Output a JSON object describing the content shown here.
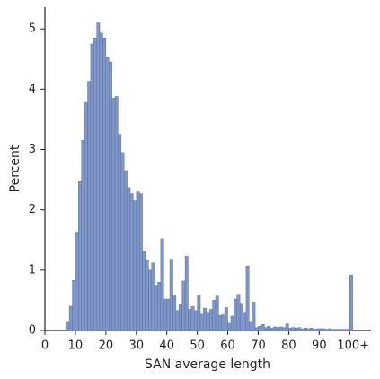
{
  "chart_data": {
    "type": "histogram",
    "xlabel": "SAN average length",
    "ylabel": "Percent",
    "bins": [
      7,
      8,
      9,
      10,
      11,
      12,
      13,
      14,
      15,
      16,
      17,
      18,
      19,
      20,
      21,
      22,
      23,
      24,
      25,
      26,
      27,
      28,
      29,
      30,
      31,
      32,
      33,
      34,
      35,
      36,
      37,
      38,
      39,
      40,
      41,
      42,
      43,
      44,
      45,
      46,
      47,
      48,
      49,
      50,
      51,
      52,
      53,
      54,
      55,
      56,
      57,
      58,
      59,
      60,
      61,
      62,
      63,
      64,
      65,
      66,
      67,
      68,
      69,
      70,
      71,
      72,
      73,
      74,
      75,
      76,
      77,
      78,
      79,
      80,
      81,
      82,
      83,
      84,
      85,
      86,
      87,
      88,
      89,
      90,
      91,
      92,
      93,
      94,
      95,
      96,
      97,
      98,
      99,
      100,
      101
    ],
    "values": [
      0.15,
      0.4,
      0.83,
      1.63,
      2.47,
      3.15,
      3.78,
      4.13,
      4.75,
      4.85,
      5.1,
      4.93,
      4.85,
      4.53,
      4.45,
      3.85,
      3.88,
      3.25,
      2.95,
      2.65,
      2.37,
      2.27,
      2.15,
      2.3,
      2.27,
      1.32,
      1.17,
      1.0,
      1.12,
      0.75,
      0.8,
      1.52,
      0.52,
      0.52,
      1.18,
      0.58,
      0.33,
      0.43,
      0.82,
      1.23,
      0.35,
      0.4,
      0.33,
      0.58,
      0.27,
      0.37,
      0.3,
      0.35,
      0.5,
      0.57,
      0.25,
      0.26,
      0.38,
      0.12,
      0.24,
      0.52,
      0.6,
      0.45,
      0.3,
      1.07,
      0.15,
      0.47,
      0.05,
      0.07,
      0.1,
      0.05,
      0.07,
      0.04,
      0.06,
      0.05,
      0.06,
      0.05,
      0.11,
      0.04,
      0.05,
      0.04,
      0.05,
      0.03,
      0.04,
      0.03,
      0.04,
      0.02,
      0.03,
      0.03,
      0.03,
      0.02,
      0.03,
      0.02,
      0.02,
      0.02,
      0.02,
      0.02,
      0.02,
      0.92
    ],
    "color": "#7f96c7",
    "edgecolor": "#5b72aa",
    "xlim": [
      0,
      107
    ],
    "xticks": [
      0,
      10,
      20,
      30,
      40,
      50,
      60,
      70,
      80,
      90,
      {
        "value": 100,
        "label": "100+"
      }
    ],
    "ylim": [
      0,
      5.36
    ],
    "yticks": [
      0,
      1,
      2,
      3,
      4,
      5
    ]
  }
}
